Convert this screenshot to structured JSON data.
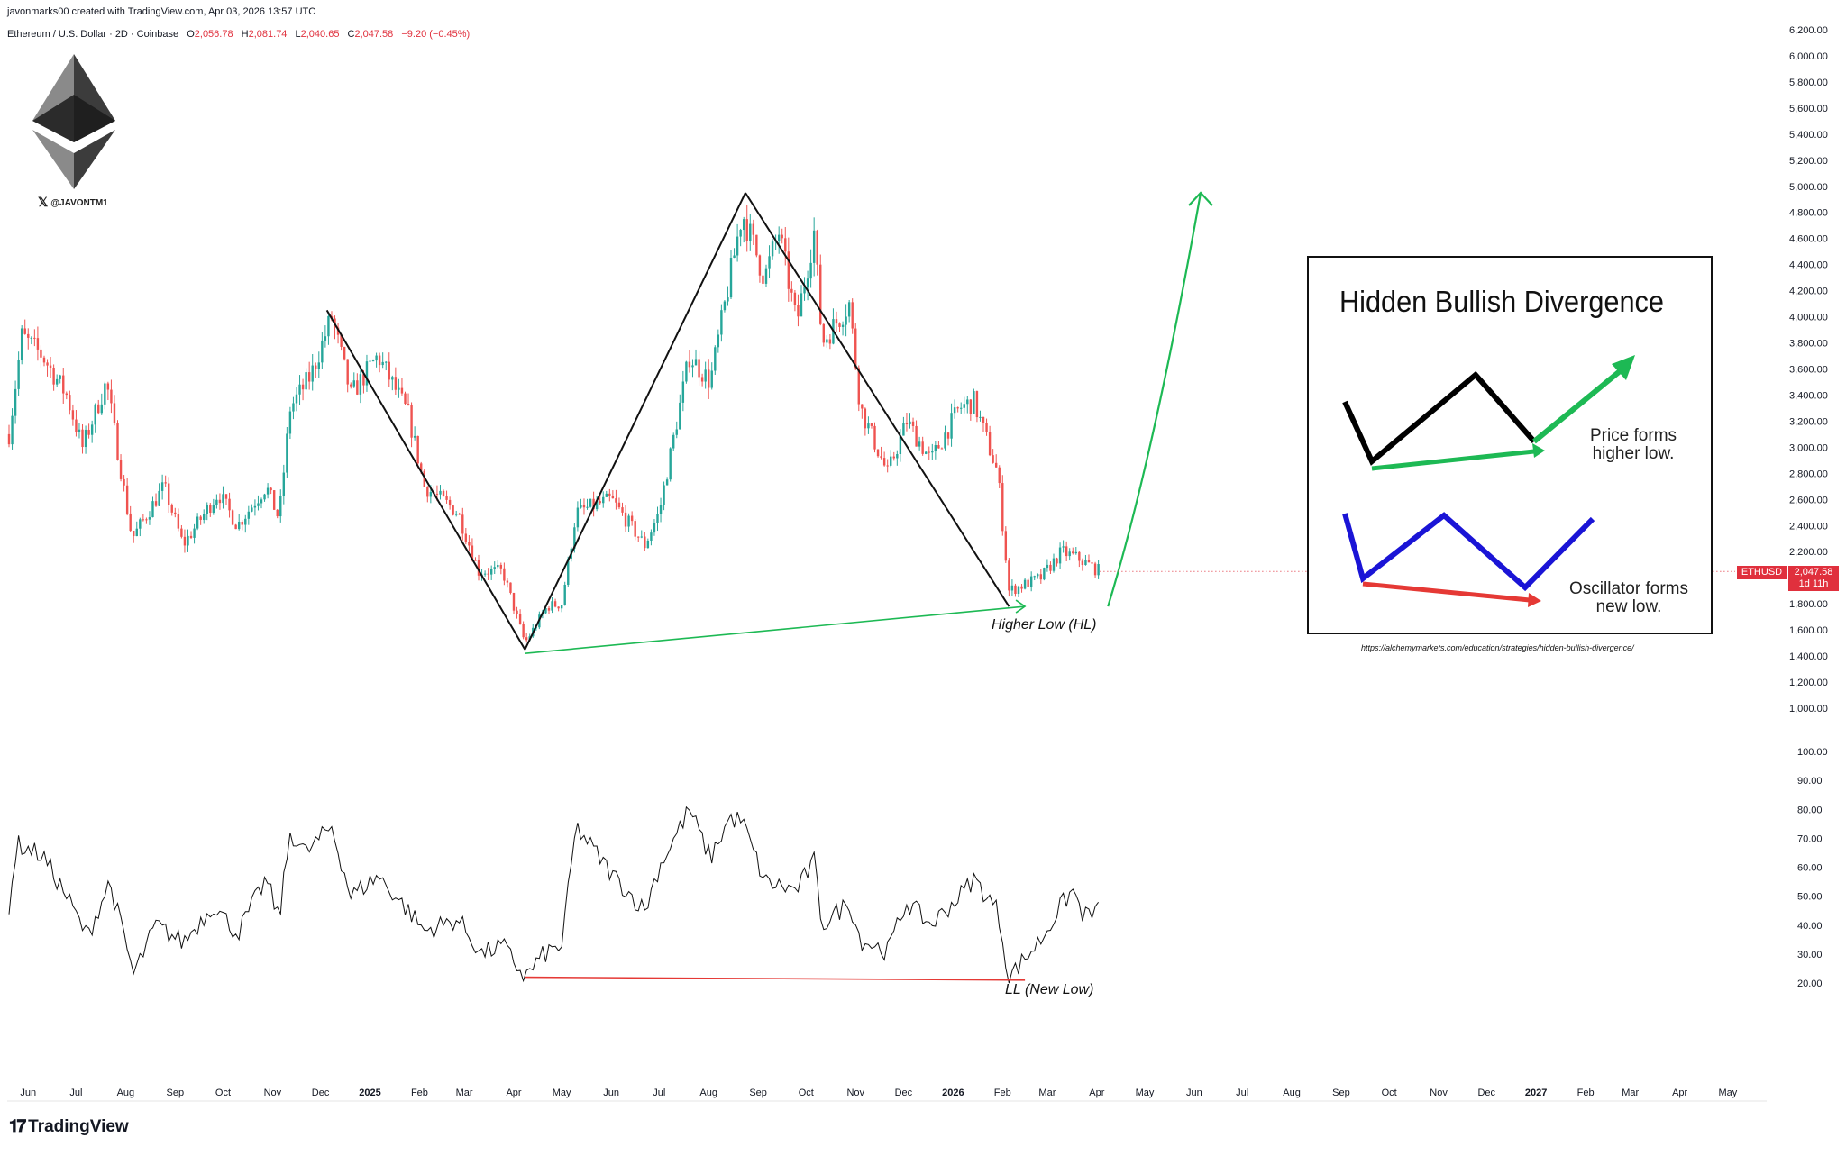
{
  "header": {
    "credit": "javonmarks00 created with TradingView.com, Apr 03, 2026 13:57 UTC",
    "symbol": "Ethereum / U.S. Dollar · 2D · Coinbase",
    "ohlc": {
      "o_label": "O",
      "o": "2,056.78",
      "h_label": "H",
      "h": "2,081.74",
      "l_label": "L",
      "l": "2,040.65",
      "c_label": "C",
      "c": "2,047.58",
      "change": "−9.20 (−0.45%)"
    }
  },
  "branding": {
    "handle": "@JAVONTM1",
    "tradingview": "TradingView",
    "x_icon": "x-logo-icon",
    "logo_icon": "ethereum-logo-icon"
  },
  "price_tag": {
    "symbol": "ETHUSD",
    "value": "2,047.58",
    "countdown": "1d 11h"
  },
  "annotations": {
    "higher_low": "Higher Low (HL)",
    "new_low": "LL (New Low)"
  },
  "inset": {
    "title": "Hidden Bullish Divergence",
    "price_caption_1": "Price forms",
    "price_caption_2": "higher low.",
    "osc_caption_1": "Oscillator forms",
    "osc_caption_2": "new low.",
    "source": "https://alchemymarkets.com/education/strategies/hidden-bullish-divergence/"
  },
  "colors": {
    "up": "#26a69a",
    "down": "#ef5350",
    "green_line": "#1db954",
    "red_line": "#e53935",
    "blue": "#1a14d6",
    "price_tag": "#e0303d"
  },
  "chart_data": [
    {
      "type": "line",
      "title": "Ethereum / U.S. Dollar · 2D · Coinbase",
      "subtitle": "price (candlesticks, approximate path of closes)",
      "x_start": "2024-05-20",
      "x_end": "2027-05-31",
      "ylim": [
        900,
        6300
      ],
      "y_scale": "linear",
      "y_ticks": [
        "1,000.00",
        "1,200.00",
        "1,400.00",
        "1,600.00",
        "1,800.00",
        "2,000.00",
        "2,200.00",
        "2,400.00",
        "2,600.00",
        "2,800.00",
        "3,000.00",
        "3,200.00",
        "3,400.00",
        "3,600.00",
        "3,800.00",
        "4,000.00",
        "4,200.00",
        "4,400.00",
        "4,600.00",
        "4,800.00",
        "5,000.00",
        "5,200.00",
        "5,400.00",
        "5,600.00",
        "5,800.00",
        "6,000.00",
        "6,200.00"
      ],
      "y_tick_values": [
        1000,
        1200,
        1400,
        1600,
        1800,
        2000,
        2200,
        2400,
        2600,
        2800,
        3000,
        3200,
        3400,
        3600,
        3800,
        4000,
        4200,
        4400,
        4600,
        4800,
        5000,
        5200,
        5400,
        5600,
        5800,
        6000,
        6200
      ],
      "x_ticks": [
        {
          "label": "Jun",
          "date": "2024-06-01",
          "bold": false
        },
        {
          "label": "Jul",
          "date": "2024-07-01",
          "bold": false
        },
        {
          "label": "Aug",
          "date": "2024-08-01",
          "bold": false
        },
        {
          "label": "Sep",
          "date": "2024-09-01",
          "bold": false
        },
        {
          "label": "Oct",
          "date": "2024-10-01",
          "bold": false
        },
        {
          "label": "Nov",
          "date": "2024-11-01",
          "bold": false
        },
        {
          "label": "Dec",
          "date": "2024-12-01",
          "bold": false
        },
        {
          "label": "2025",
          "date": "2025-01-01",
          "bold": true
        },
        {
          "label": "Feb",
          "date": "2025-02-01",
          "bold": false
        },
        {
          "label": "Mar",
          "date": "2025-03-01",
          "bold": false
        },
        {
          "label": "Apr",
          "date": "2025-04-01",
          "bold": false
        },
        {
          "label": "May",
          "date": "2025-05-01",
          "bold": false
        },
        {
          "label": "Jun",
          "date": "2025-06-01",
          "bold": false
        },
        {
          "label": "Jul",
          "date": "2025-07-01",
          "bold": false
        },
        {
          "label": "Aug",
          "date": "2025-08-01",
          "bold": false
        },
        {
          "label": "Sep",
          "date": "2025-09-01",
          "bold": false
        },
        {
          "label": "Oct",
          "date": "2025-10-01",
          "bold": false
        },
        {
          "label": "Nov",
          "date": "2025-11-01",
          "bold": false
        },
        {
          "label": "Dec",
          "date": "2025-12-01",
          "bold": false
        },
        {
          "label": "2026",
          "date": "2026-01-01",
          "bold": true
        },
        {
          "label": "Feb",
          "date": "2026-02-01",
          "bold": false
        },
        {
          "label": "Mar",
          "date": "2026-03-01",
          "bold": false
        },
        {
          "label": "Apr",
          "date": "2026-04-01",
          "bold": false
        },
        {
          "label": "May",
          "date": "2026-05-01",
          "bold": false
        },
        {
          "label": "Jun",
          "date": "2026-06-01",
          "bold": false
        },
        {
          "label": "Jul",
          "date": "2026-07-01",
          "bold": false
        },
        {
          "label": "Aug",
          "date": "2026-08-01",
          "bold": false
        },
        {
          "label": "Sep",
          "date": "2026-09-01",
          "bold": false
        },
        {
          "label": "Oct",
          "date": "2026-10-01",
          "bold": false
        },
        {
          "label": "Nov",
          "date": "2026-11-01",
          "bold": false
        },
        {
          "label": "Dec",
          "date": "2026-12-01",
          "bold": false
        },
        {
          "label": "2027",
          "date": "2027-01-01",
          "bold": true
        },
        {
          "label": "Feb",
          "date": "2027-02-01",
          "bold": false
        },
        {
          "label": "Mar",
          "date": "2027-03-01",
          "bold": false
        },
        {
          "label": "Apr",
          "date": "2027-04-01",
          "bold": false
        },
        {
          "label": "May",
          "date": "2027-05-01",
          "bold": false
        }
      ],
      "close_path": [
        {
          "x": "2024-05-20",
          "y": 3100
        },
        {
          "x": "2024-05-28",
          "y": 3850
        },
        {
          "x": "2024-06-10",
          "y": 3700
        },
        {
          "x": "2024-06-25",
          "y": 3400
        },
        {
          "x": "2024-07-05",
          "y": 3000
        },
        {
          "x": "2024-07-20",
          "y": 3500
        },
        {
          "x": "2024-08-05",
          "y": 2300
        },
        {
          "x": "2024-08-25",
          "y": 2700
        },
        {
          "x": "2024-09-06",
          "y": 2250
        },
        {
          "x": "2024-09-28",
          "y": 2650
        },
        {
          "x": "2024-10-10",
          "y": 2400
        },
        {
          "x": "2024-10-28",
          "y": 2700
        },
        {
          "x": "2024-11-05",
          "y": 2450
        },
        {
          "x": "2024-11-12",
          "y": 3300
        },
        {
          "x": "2024-11-25",
          "y": 3550
        },
        {
          "x": "2024-12-08",
          "y": 4000
        },
        {
          "x": "2024-12-20",
          "y": 3400
        },
        {
          "x": "2025-01-06",
          "y": 3700
        },
        {
          "x": "2025-01-25",
          "y": 3250
        },
        {
          "x": "2025-02-04",
          "y": 2700
        },
        {
          "x": "2025-02-25",
          "y": 2500
        },
        {
          "x": "2025-03-10",
          "y": 2050
        },
        {
          "x": "2025-03-25",
          "y": 2050
        },
        {
          "x": "2025-04-08",
          "y": 1500
        },
        {
          "x": "2025-04-22",
          "y": 1780
        },
        {
          "x": "2025-05-01",
          "y": 1800
        },
        {
          "x": "2025-05-10",
          "y": 2500
        },
        {
          "x": "2025-06-01",
          "y": 2600
        },
        {
          "x": "2025-06-22",
          "y": 2250
        },
        {
          "x": "2025-07-01",
          "y": 2500
        },
        {
          "x": "2025-07-20",
          "y": 3700
        },
        {
          "x": "2025-08-02",
          "y": 3500
        },
        {
          "x": "2025-08-22",
          "y": 4800
        },
        {
          "x": "2025-09-05",
          "y": 4300
        },
        {
          "x": "2025-09-14",
          "y": 4650
        },
        {
          "x": "2025-09-25",
          "y": 3950
        },
        {
          "x": "2025-10-06",
          "y": 4650
        },
        {
          "x": "2025-10-11",
          "y": 3800
        },
        {
          "x": "2025-10-28",
          "y": 4100
        },
        {
          "x": "2025-11-04",
          "y": 3300
        },
        {
          "x": "2025-11-21",
          "y": 2800
        },
        {
          "x": "2025-12-03",
          "y": 3200
        },
        {
          "x": "2025-12-18",
          "y": 2900
        },
        {
          "x": "2026-01-05",
          "y": 3300
        },
        {
          "x": "2026-01-14",
          "y": 3350
        },
        {
          "x": "2026-01-29",
          "y": 2800
        },
        {
          "x": "2026-02-05",
          "y": 1900
        },
        {
          "x": "2026-02-25",
          "y": 2000
        },
        {
          "x": "2026-03-10",
          "y": 2200
        },
        {
          "x": "2026-03-20",
          "y": 2150
        },
        {
          "x": "2026-04-03",
          "y": 2047.58
        }
      ],
      "trend_lines": [
        {
          "name": "decline",
          "color": "black",
          "points": [
            {
              "x": "2024-12-05",
              "y": 4050
            },
            {
              "x": "2025-04-08",
              "y": 1450
            }
          ]
        },
        {
          "name": "rally",
          "color": "black",
          "points": [
            {
              "x": "2025-04-08",
              "y": 1450
            },
            {
              "x": "2025-08-24",
              "y": 4950
            }
          ]
        },
        {
          "name": "decline",
          "color": "black",
          "points": [
            {
              "x": "2025-08-24",
              "y": 4950
            },
            {
              "x": "2026-02-05",
              "y": 1780
            }
          ]
        },
        {
          "name": "higher-low",
          "color": "green",
          "points": [
            {
              "x": "2025-04-08",
              "y": 1420
            },
            {
              "x": "2026-02-15",
              "y": 1780
            }
          ]
        }
      ],
      "projection": {
        "color": "green",
        "points": [
          {
            "x": "2026-04-08",
            "y": 1780
          },
          {
            "x": "2026-05-06",
            "y": 2900
          },
          {
            "x": "2026-05-28",
            "y": 4400
          },
          {
            "x": "2026-06-05",
            "y": 4950
          }
        ]
      },
      "last_price": 2047.58
    },
    {
      "type": "line",
      "subtitle": "oscillator",
      "ylim": [
        10,
        105
      ],
      "y_ticks": [
        "20.00",
        "30.00",
        "40.00",
        "50.00",
        "60.00",
        "70.00",
        "80.00",
        "90.00",
        "100.00"
      ],
      "y_tick_values": [
        20,
        30,
        40,
        50,
        60,
        70,
        80,
        90,
        100
      ],
      "series_path": [
        {
          "x": "2024-05-20",
          "y": 47
        },
        {
          "x": "2024-05-25",
          "y": 68
        },
        {
          "x": "2024-06-10",
          "y": 64
        },
        {
          "x": "2024-06-25",
          "y": 50
        },
        {
          "x": "2024-07-08",
          "y": 36
        },
        {
          "x": "2024-07-22",
          "y": 55
        },
        {
          "x": "2024-08-06",
          "y": 23
        },
        {
          "x": "2024-08-20",
          "y": 40
        },
        {
          "x": "2024-09-06",
          "y": 34
        },
        {
          "x": "2024-09-25",
          "y": 47
        },
        {
          "x": "2024-10-10",
          "y": 37
        },
        {
          "x": "2024-10-28",
          "y": 56
        },
        {
          "x": "2024-11-05",
          "y": 42
        },
        {
          "x": "2024-11-12",
          "y": 72
        },
        {
          "x": "2024-11-22",
          "y": 65
        },
        {
          "x": "2024-12-08",
          "y": 74
        },
        {
          "x": "2024-12-20",
          "y": 50
        },
        {
          "x": "2025-01-06",
          "y": 57
        },
        {
          "x": "2025-01-25",
          "y": 45
        },
        {
          "x": "2025-02-04",
          "y": 38
        },
        {
          "x": "2025-02-25",
          "y": 42
        },
        {
          "x": "2025-03-12",
          "y": 30
        },
        {
          "x": "2025-03-25",
          "y": 33
        },
        {
          "x": "2025-04-08",
          "y": 22
        },
        {
          "x": "2025-04-20",
          "y": 30
        },
        {
          "x": "2025-05-01",
          "y": 33
        },
        {
          "x": "2025-05-10",
          "y": 74
        },
        {
          "x": "2025-06-01",
          "y": 58
        },
        {
          "x": "2025-06-22",
          "y": 45
        },
        {
          "x": "2025-07-01",
          "y": 60
        },
        {
          "x": "2025-07-20",
          "y": 80
        },
        {
          "x": "2025-08-02",
          "y": 63
        },
        {
          "x": "2025-08-14",
          "y": 77
        },
        {
          "x": "2025-08-22",
          "y": 76
        },
        {
          "x": "2025-09-05",
          "y": 55
        },
        {
          "x": "2025-09-25",
          "y": 52
        },
        {
          "x": "2025-10-06",
          "y": 62
        },
        {
          "x": "2025-10-11",
          "y": 40
        },
        {
          "x": "2025-10-28",
          "y": 48
        },
        {
          "x": "2025-11-04",
          "y": 35
        },
        {
          "x": "2025-11-21",
          "y": 31
        },
        {
          "x": "2025-12-03",
          "y": 48
        },
        {
          "x": "2025-12-18",
          "y": 40
        },
        {
          "x": "2026-01-05",
          "y": 50
        },
        {
          "x": "2026-01-14",
          "y": 56
        },
        {
          "x": "2026-01-29",
          "y": 45
        },
        {
          "x": "2026-02-05",
          "y": 22
        },
        {
          "x": "2026-02-25",
          "y": 35
        },
        {
          "x": "2026-03-10",
          "y": 47
        },
        {
          "x": "2026-03-17",
          "y": 52
        },
        {
          "x": "2026-03-24",
          "y": 43
        },
        {
          "x": "2026-04-03",
          "y": 45
        }
      ],
      "trend_lines": [
        {
          "name": "lower-low",
          "color": "red",
          "points": [
            {
              "x": "2025-04-08",
              "y": 22
            },
            {
              "x": "2026-02-15",
              "y": 21
            }
          ]
        }
      ]
    }
  ]
}
